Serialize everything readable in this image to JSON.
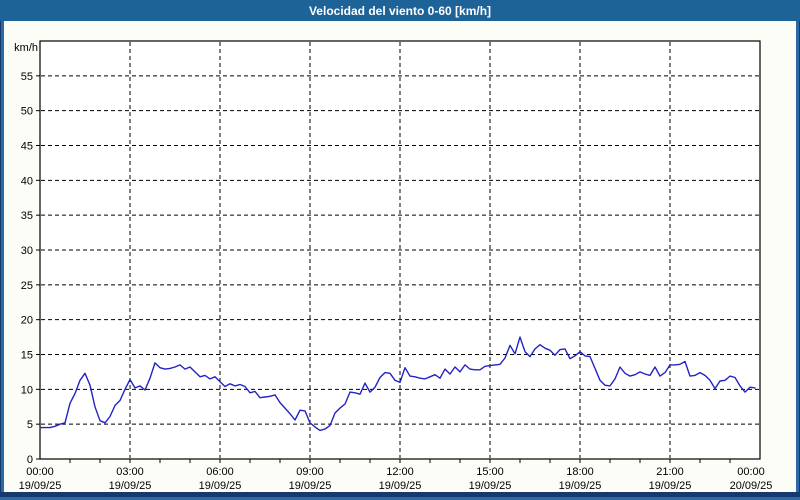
{
  "window": {
    "title": "Velocidad del viento 0-60 [km/h]"
  },
  "colors": {
    "titlebar_bg": "#1d6398",
    "titlebar_text": "#ffffff",
    "frame_light": "#2e6ba6",
    "frame_dark": "#16396e",
    "content_bg": "#fdfdf8",
    "plot_bg": "#ffffff",
    "axis": "#000000",
    "grid": "#000000",
    "line": "#2323c4"
  },
  "chart_data": {
    "type": "line",
    "title": "Velocidad del viento 0-60 [km/h]",
    "ylabel": "km/h",
    "xlabel": "",
    "ylim": [
      0,
      60
    ],
    "yticks": [
      0,
      5,
      10,
      15,
      20,
      25,
      30,
      35,
      40,
      45,
      50,
      55
    ],
    "grid": "dashed, horizontal every 5 km/h, vertical every 3 h",
    "legend_position": "none",
    "x_range_minutes": [
      0,
      1440
    ],
    "x_minor_tick_step_minutes": 60,
    "x_major_ticks": [
      {
        "minutes": 0,
        "time": "00:00",
        "date": "19/09/25"
      },
      {
        "minutes": 180,
        "time": "03:00",
        "date": "19/09/25"
      },
      {
        "minutes": 360,
        "time": "06:00",
        "date": "19/09/25"
      },
      {
        "minutes": 540,
        "time": "09:00",
        "date": "19/09/25"
      },
      {
        "minutes": 720,
        "time": "12:00",
        "date": "19/09/25"
      },
      {
        "minutes": 900,
        "time": "15:00",
        "date": "19/09/25"
      },
      {
        "minutes": 1080,
        "time": "18:00",
        "date": "19/09/25"
      },
      {
        "minutes": 1260,
        "time": "21:00",
        "date": "19/09/25"
      },
      {
        "minutes": 1440,
        "time": "00:00",
        "date": "20/09/25"
      }
    ],
    "series": [
      {
        "name": "Velocidad del viento",
        "color": "#2323c4",
        "points": [
          [
            0,
            4.5
          ],
          [
            10,
            4.5
          ],
          [
            20,
            4.5
          ],
          [
            30,
            4.7
          ],
          [
            40,
            5.0
          ],
          [
            50,
            5.2
          ],
          [
            60,
            8.0
          ],
          [
            70,
            9.4
          ],
          [
            80,
            11.3
          ],
          [
            90,
            12.3
          ],
          [
            100,
            10.6
          ],
          [
            110,
            7.5
          ],
          [
            120,
            5.5
          ],
          [
            130,
            5.2
          ],
          [
            140,
            6.1
          ],
          [
            150,
            7.7
          ],
          [
            160,
            8.4
          ],
          [
            170,
            10.0
          ],
          [
            180,
            11.4
          ],
          [
            190,
            10.2
          ],
          [
            200,
            10.5
          ],
          [
            210,
            9.9
          ],
          [
            220,
            11.6
          ],
          [
            230,
            13.8
          ],
          [
            240,
            13.1
          ],
          [
            250,
            12.9
          ],
          [
            260,
            13.0
          ],
          [
            270,
            13.2
          ],
          [
            280,
            13.5
          ],
          [
            290,
            12.9
          ],
          [
            300,
            13.2
          ],
          [
            310,
            12.5
          ],
          [
            320,
            11.8
          ],
          [
            330,
            12.0
          ],
          [
            340,
            11.5
          ],
          [
            350,
            11.8
          ],
          [
            360,
            11.1
          ],
          [
            370,
            10.4
          ],
          [
            380,
            10.8
          ],
          [
            390,
            10.5
          ],
          [
            400,
            10.7
          ],
          [
            410,
            10.4
          ],
          [
            420,
            9.5
          ],
          [
            430,
            9.7
          ],
          [
            440,
            8.8
          ],
          [
            450,
            8.9
          ],
          [
            460,
            9.0
          ],
          [
            470,
            9.2
          ],
          [
            480,
            8.1
          ],
          [
            490,
            7.3
          ],
          [
            500,
            6.5
          ],
          [
            510,
            5.6
          ],
          [
            520,
            7.0
          ],
          [
            530,
            6.9
          ],
          [
            540,
            5.2
          ],
          [
            550,
            4.6
          ],
          [
            560,
            4.1
          ],
          [
            570,
            4.3
          ],
          [
            580,
            4.8
          ],
          [
            590,
            6.6
          ],
          [
            600,
            7.3
          ],
          [
            610,
            7.9
          ],
          [
            620,
            9.6
          ],
          [
            630,
            9.5
          ],
          [
            640,
            9.3
          ],
          [
            650,
            10.9
          ],
          [
            660,
            9.6
          ],
          [
            670,
            10.3
          ],
          [
            680,
            11.7
          ],
          [
            690,
            12.4
          ],
          [
            700,
            12.3
          ],
          [
            710,
            11.3
          ],
          [
            720,
            11.0
          ],
          [
            730,
            13.1
          ],
          [
            740,
            11.9
          ],
          [
            750,
            11.8
          ],
          [
            760,
            11.6
          ],
          [
            770,
            11.5
          ],
          [
            780,
            11.8
          ],
          [
            790,
            12.1
          ],
          [
            800,
            11.6
          ],
          [
            810,
            12.9
          ],
          [
            820,
            12.2
          ],
          [
            830,
            13.2
          ],
          [
            840,
            12.5
          ],
          [
            850,
            13.5
          ],
          [
            860,
            12.9
          ],
          [
            870,
            12.8
          ],
          [
            880,
            12.8
          ],
          [
            890,
            13.3
          ],
          [
            900,
            13.4
          ],
          [
            910,
            13.5
          ],
          [
            920,
            13.6
          ],
          [
            930,
            14.5
          ],
          [
            940,
            16.3
          ],
          [
            950,
            15.1
          ],
          [
            960,
            17.5
          ],
          [
            970,
            15.4
          ],
          [
            980,
            14.7
          ],
          [
            990,
            15.8
          ],
          [
            1000,
            16.4
          ],
          [
            1010,
            15.9
          ],
          [
            1020,
            15.6
          ],
          [
            1030,
            14.9
          ],
          [
            1040,
            15.7
          ],
          [
            1050,
            15.8
          ],
          [
            1060,
            14.4
          ],
          [
            1070,
            14.8
          ],
          [
            1080,
            15.4
          ],
          [
            1090,
            14.8
          ],
          [
            1100,
            14.7
          ],
          [
            1110,
            13.0
          ],
          [
            1120,
            11.3
          ],
          [
            1130,
            10.6
          ],
          [
            1140,
            10.5
          ],
          [
            1150,
            11.5
          ],
          [
            1160,
            13.2
          ],
          [
            1170,
            12.3
          ],
          [
            1180,
            11.9
          ],
          [
            1190,
            12.1
          ],
          [
            1200,
            12.5
          ],
          [
            1210,
            12.2
          ],
          [
            1220,
            12.0
          ],
          [
            1230,
            13.2
          ],
          [
            1240,
            11.9
          ],
          [
            1250,
            12.4
          ],
          [
            1260,
            13.5
          ],
          [
            1270,
            13.5
          ],
          [
            1280,
            13.6
          ],
          [
            1290,
            14.0
          ],
          [
            1300,
            11.9
          ],
          [
            1310,
            12.0
          ],
          [
            1320,
            12.4
          ],
          [
            1330,
            12.0
          ],
          [
            1340,
            11.3
          ],
          [
            1350,
            10.1
          ],
          [
            1360,
            11.2
          ],
          [
            1370,
            11.3
          ],
          [
            1380,
            11.9
          ],
          [
            1390,
            11.7
          ],
          [
            1400,
            10.5
          ],
          [
            1410,
            9.6
          ],
          [
            1420,
            10.3
          ],
          [
            1430,
            10.2
          ]
        ]
      }
    ]
  }
}
